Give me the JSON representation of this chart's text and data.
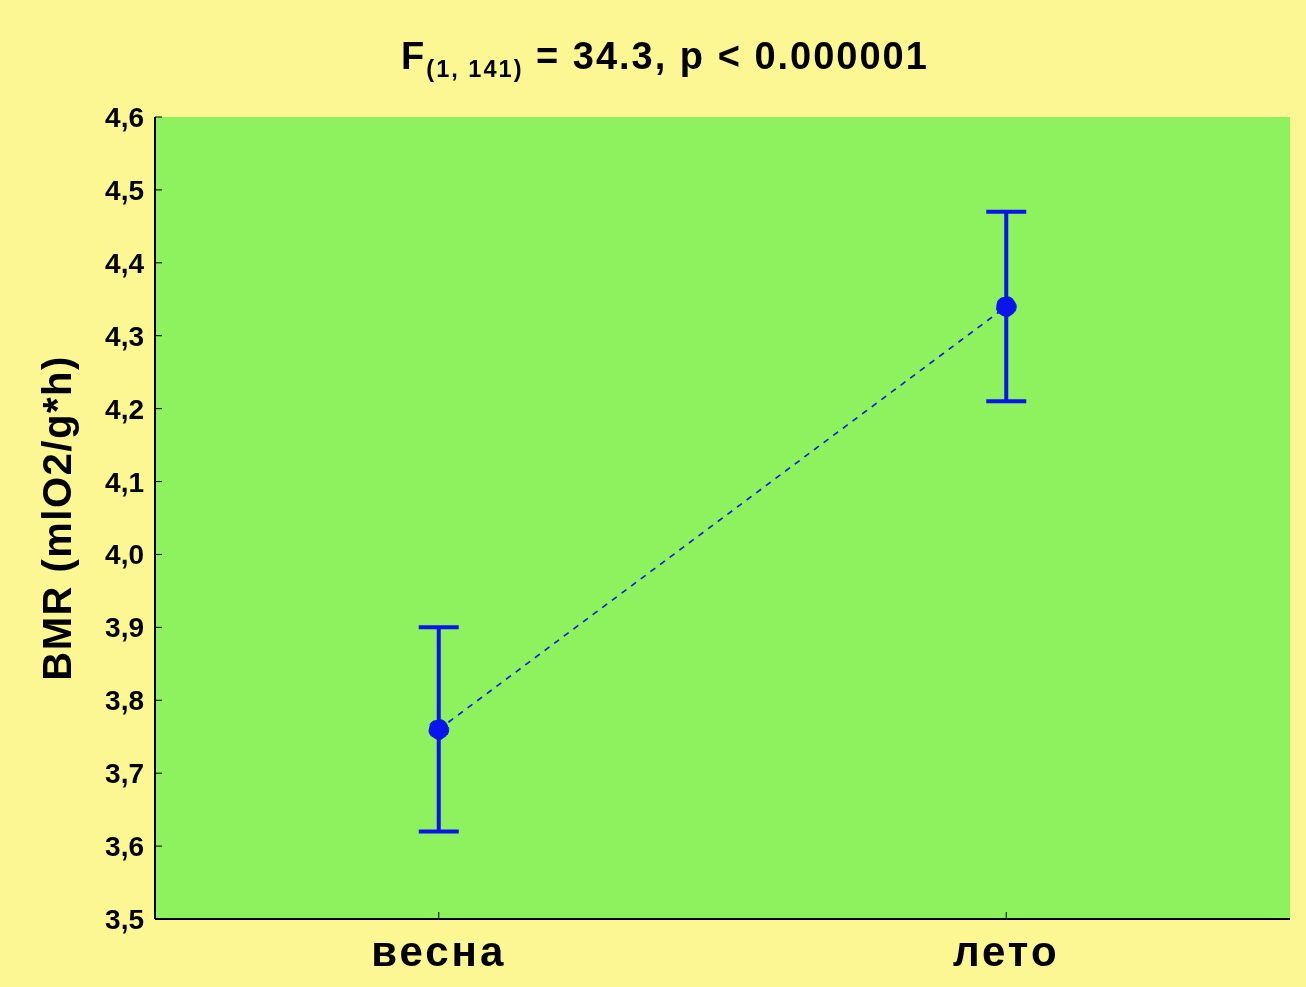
{
  "chart_data": {
    "type": "line",
    "title": "F$_{(1, 141)}$ = 34.3, p < 0.000001",
    "ylabel": "BMR (mlO2/g*h)",
    "categories": [
      "весна",
      "лето"
    ],
    "series": [
      {
        "color": "#0a14ec",
        "values": [
          3.76,
          4.34
        ],
        "errors": [
          0.14,
          0.13
        ]
      }
    ],
    "ylim": [
      3.5,
      4.6
    ],
    "yticks": [
      {
        "value": 3.5,
        "label": "3,5"
      },
      {
        "value": 3.6,
        "label": "3,6"
      },
      {
        "value": 3.7,
        "label": "3,7"
      },
      {
        "value": 3.8,
        "label": "3,8"
      },
      {
        "value": 3.9,
        "label": "3,9"
      },
      {
        "value": 4.0,
        "label": "4,0"
      },
      {
        "value": 4.1,
        "label": "4,1"
      },
      {
        "value": 4.2,
        "label": "4,2"
      },
      {
        "value": 4.3,
        "label": "4,3"
      },
      {
        "value": 4.4,
        "label": "4,4"
      },
      {
        "value": 4.5,
        "label": "4,5"
      },
      {
        "value": 4.6,
        "label": "4,6"
      }
    ],
    "marker": "circle",
    "line_style": "dashed"
  }
}
